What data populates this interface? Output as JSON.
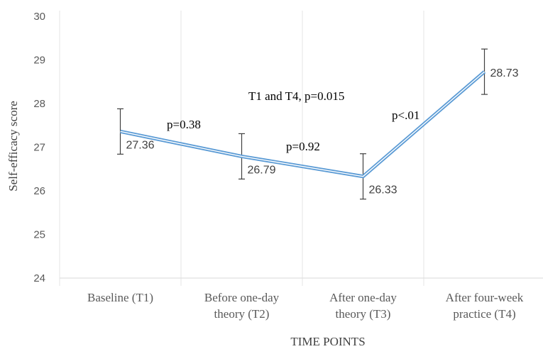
{
  "chart_data": {
    "type": "line",
    "categories": [
      [
        "Baseline (T1)"
      ],
      [
        "Before one-day",
        "theory (T2)"
      ],
      [
        "After one-day",
        "theory (T3)"
      ],
      [
        "After four-week",
        "practice (T4)"
      ]
    ],
    "series": [
      {
        "values": [
          27.36,
          26.79,
          26.33,
          28.73
        ],
        "error": [
          0.52,
          0.52,
          0.52,
          0.52
        ],
        "color": "#5B9BD5"
      }
    ],
    "data_labels": [
      "27.36",
      "26.79",
      "26.33",
      "28.73"
    ],
    "xlabel": "TIME POINTS",
    "ylabel": "Self-efficacy  score",
    "ylim": [
      24,
      30
    ],
    "yticks": [
      "24",
      "25",
      "26",
      "27",
      "28",
      "29",
      "30"
    ],
    "grid": "vertical",
    "annotations": [
      {
        "text": "p=0.38"
      },
      {
        "text": "p=0.92"
      },
      {
        "text": "p<.01"
      },
      {
        "text": "T1 and T4, p=0.015"
      }
    ]
  }
}
